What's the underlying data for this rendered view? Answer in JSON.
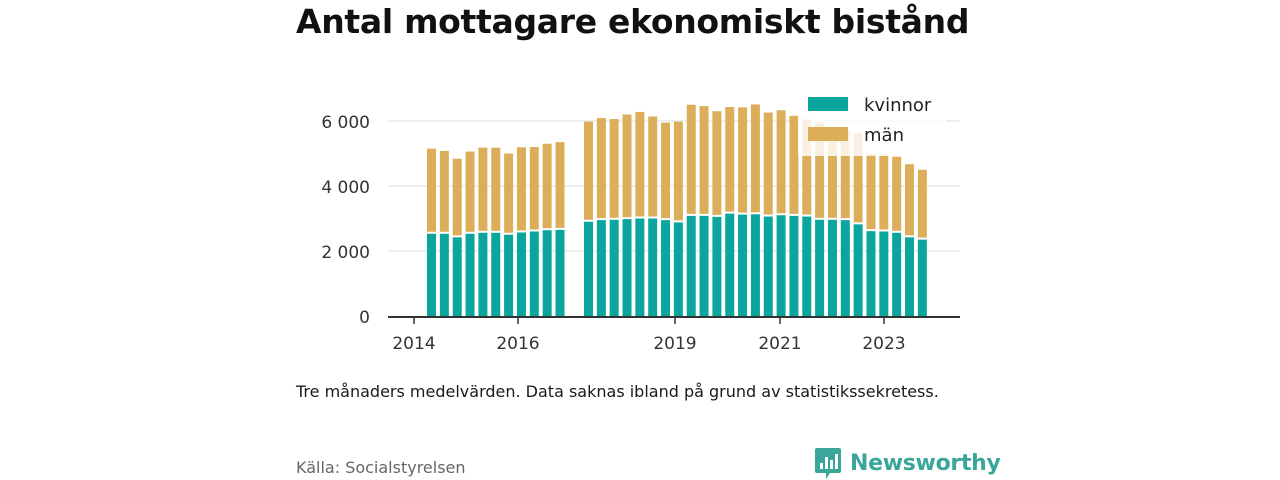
{
  "title": "Antal mottagare ekonomiskt bistånd",
  "note": "Tre månaders medelvärden. Data saknas ibland på grund av statistikssekretess.",
  "source": "Källa: Socialstyrelsen",
  "brand": "Newsworthy",
  "colors": {
    "kvinnor": "#0aa59c",
    "man": "#dcae5a",
    "brand": "#3aa69a",
    "grid": "#dddddd",
    "axis": "#333333"
  },
  "chart_data": {
    "type": "bar",
    "stacked": true,
    "x_ticks": [
      "2014",
      "2016",
      "2019",
      "2021",
      "2023"
    ],
    "y_ticks": [
      "0",
      "2 000",
      "4 000",
      "6 000"
    ],
    "ylim": [
      0,
      6500
    ],
    "grid": true,
    "legend_position": "top-right",
    "series": [
      {
        "name": "kvinnor",
        "values": [
          2530,
          2530,
          2420,
          2530,
          2560,
          2560,
          2500,
          2570,
          2600,
          2640,
          2650,
          2900,
          2950,
          2960,
          2980,
          3000,
          3000,
          2950,
          2880,
          3080,
          3080,
          3050,
          3150,
          3120,
          3130,
          3060,
          3100,
          3080,
          3060,
          2960,
          2960,
          2950,
          2820,
          2610,
          2600,
          2560,
          2420,
          2350
        ]
      },
      {
        "name": "män",
        "values": [
          2620,
          2550,
          2420,
          2530,
          2620,
          2620,
          2500,
          2620,
          2600,
          2660,
          2700,
          3080,
          3140,
          3100,
          3220,
          3280,
          3140,
          3000,
          3100,
          3420,
          3380,
          3250,
          3280,
          3300,
          3380,
          3200,
          3230,
          3080,
          2990,
          2990,
          2820,
          2770,
          2800,
          2380,
          2370,
          2340,
          2250,
          2150
        ]
      }
    ]
  }
}
